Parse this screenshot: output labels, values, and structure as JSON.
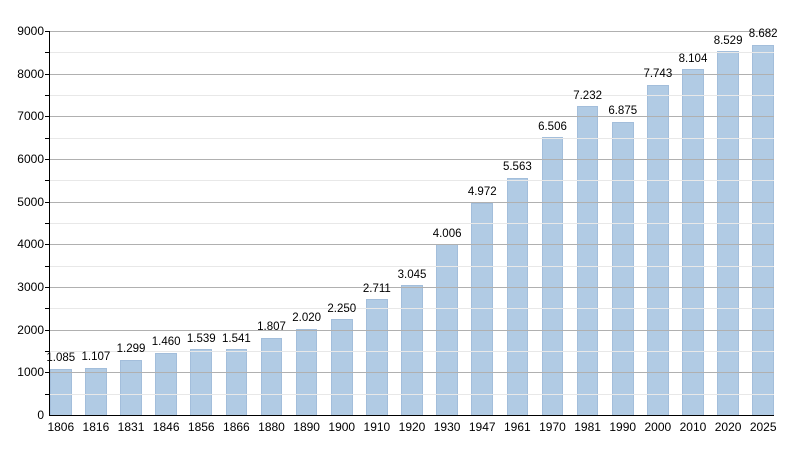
{
  "chart_data": {
    "type": "bar",
    "title": "",
    "xlabel": "",
    "ylabel": "",
    "categories": [
      "1806",
      "1816",
      "1831",
      "1846",
      "1856",
      "1866",
      "1880",
      "1890",
      "1900",
      "1910",
      "1920",
      "1930",
      "1947",
      "1961",
      "1970",
      "1981",
      "1990",
      "2000",
      "2010",
      "2020",
      "2025"
    ],
    "values": [
      1085,
      1107,
      1299,
      1460,
      1539,
      1541,
      1807,
      2020,
      2250,
      2711,
      3045,
      4006,
      4972,
      5563,
      6506,
      7232,
      6875,
      7743,
      8104,
      8529,
      8682
    ],
    "data_labels": [
      "1.085",
      "1.107",
      "1.299",
      "1.460",
      "1.539",
      "1.541",
      "1.807",
      "2.020",
      "2.250",
      "2.711",
      "3.045",
      "4.006",
      "4.972",
      "5.563",
      "6.506",
      "7.232",
      "6.875",
      "7.743",
      "8.104",
      "8.529",
      "8.682"
    ],
    "ylim": [
      0,
      9000
    ],
    "ytick_step": 1000,
    "ytick_minor_step": 500,
    "ytick_labels": [
      "0",
      "1000",
      "2000",
      "3000",
      "4000",
      "5000",
      "6000",
      "7000",
      "8000",
      "9000"
    ],
    "grid": true,
    "grid_on_top_of_bars": true,
    "legend": false,
    "colors": {
      "bar_fill": "#b1cbe4",
      "bar_border": "#a3bedb",
      "grid_major": "#b0b0b0",
      "grid_minor": "#e8e8e8",
      "axis": "#000000",
      "text": "#000000",
      "background": "#ffffff"
    }
  }
}
